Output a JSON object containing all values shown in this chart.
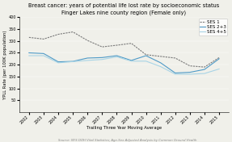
{
  "title_line1": "Breast cancer: years of potential life lost rate by socioeconomic status",
  "title_line2": "Finger Lakes nine county region (Female only)",
  "xlabel": "Trailing Three Year Moving Average",
  "ylabel": "YPLL Rate (per 100K population)",
  "source": "Source: NYS DOH Vital Statistics; Age-Sex Adjusted Analysis by Common Ground Health",
  "years": [
    2002,
    2003,
    2004,
    2005,
    2006,
    2007,
    2008,
    2009,
    2010,
    2011,
    2012,
    2013,
    2014,
    2015
  ],
  "ses1": [
    315,
    308,
    328,
    338,
    302,
    275,
    282,
    290,
    242,
    235,
    228,
    195,
    190,
    230
  ],
  "ses23": [
    250,
    247,
    212,
    214,
    228,
    230,
    238,
    218,
    238,
    208,
    165,
    168,
    180,
    225
  ],
  "ses45": [
    238,
    238,
    208,
    213,
    218,
    222,
    233,
    215,
    215,
    192,
    160,
    160,
    163,
    182
  ],
  "color_ses1": "#7a7a7a",
  "color_ses23": "#4e9ac7",
  "color_ses45": "#a8d4e6",
  "legend_labels": [
    "SES 1",
    "SES 2+3",
    "SES 4+5"
  ],
  "ylim_min": 0,
  "ylim_max": 400,
  "yticks": [
    50,
    100,
    150,
    200,
    250,
    300,
    350,
    400
  ],
  "bg_color": "#f0f0ea",
  "plot_bg": "#f0f0ea",
  "title_fontsize": 4.8,
  "axis_label_fontsize": 3.8,
  "tick_fontsize": 3.5,
  "legend_fontsize": 4.0,
  "source_fontsize": 2.8
}
